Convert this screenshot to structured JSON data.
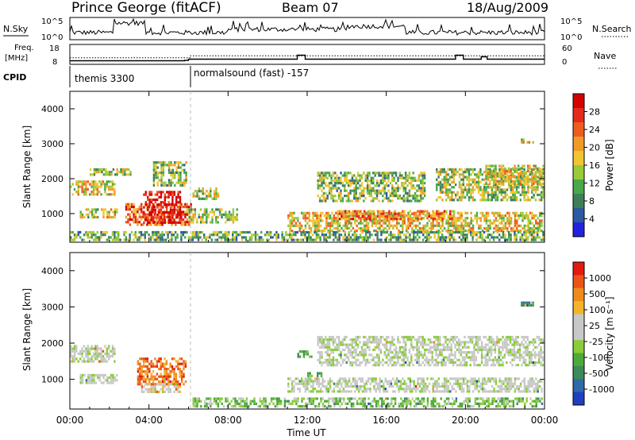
{
  "header": {
    "station": "Prince George (fitACF)",
    "beam": "Beam 07",
    "date": "18/Aug/2009"
  },
  "top_panels": {
    "nsky_label": "N.Sky",
    "nsky_ticks": [
      "10^5",
      "10^0"
    ],
    "nsearch_label": "N.Search",
    "nsearch_ticks": [
      "10^5",
      "10^0"
    ],
    "freq_label": "Freq.",
    "freq_unit": "[MHz]",
    "freq_ticks": [
      "18",
      "8"
    ],
    "nave_label": "Nave",
    "nave_ticks": [
      "60",
      "0"
    ],
    "cpid_label": "CPID",
    "cpid_segments": [
      {
        "start_hour": 0,
        "label": "themis 3300"
      },
      {
        "start_hour": 6,
        "label": "normalsound (fast) -157"
      }
    ],
    "freq_series": [
      {
        "hour": 0,
        "value": 9.8
      },
      {
        "hour": 5.8,
        "value": 10.0
      },
      {
        "hour": 6,
        "value": 10.6
      },
      {
        "hour": 11.4,
        "value": 10.6
      },
      {
        "hour": 11.5,
        "value": 12.6
      },
      {
        "hour": 11.8,
        "value": 12.6
      },
      {
        "hour": 11.9,
        "value": 10.6
      },
      {
        "hour": 19.4,
        "value": 10.6
      },
      {
        "hour": 19.5,
        "value": 12.6
      },
      {
        "hour": 19.8,
        "value": 12.6
      },
      {
        "hour": 19.9,
        "value": 10.6
      },
      {
        "hour": 20.7,
        "value": 10.6
      },
      {
        "hour": 20.8,
        "value": 11.8
      },
      {
        "hour": 21.0,
        "value": 11.8
      },
      {
        "hour": 21.1,
        "value": 10.6
      },
      {
        "hour": 24,
        "value": 10.6
      }
    ],
    "nave_series": [
      {
        "hour": 0,
        "value": 20
      },
      {
        "hour": 6,
        "value": 20
      },
      {
        "hour": 6.1,
        "value": 26
      },
      {
        "hour": 24,
        "value": 26
      }
    ]
  },
  "chart_data": [
    {
      "type": "heatmap",
      "title": "",
      "ylabel": "Slant Range [km]",
      "xlabel": "",
      "x_ticks": [
        "00:00",
        "04:00",
        "08:00",
        "12:00",
        "16:00",
        "20:00",
        "00:00"
      ],
      "x_range_hours": [
        0,
        24
      ],
      "ylim": [
        180,
        4500
      ],
      "y_ticks": [
        1000,
        2000,
        3000,
        4000
      ],
      "colorbar": {
        "label": "Power [dB]",
        "ticks": [
          "28",
          "24",
          "20",
          "16",
          "12",
          "8",
          "4"
        ],
        "colors": [
          "#2222dd",
          "#2c5aa0",
          "#3e7f5a",
          "#48a84a",
          "#9ac93a",
          "#f2c431",
          "#f09a2a",
          "#ee5c22",
          "#e42a1a",
          "#d30000"
        ]
      },
      "echo_regions": [
        {
          "t0": 0.0,
          "t1": 2.4,
          "r0": 1450,
          "r1": 1950,
          "level": 0.55
        },
        {
          "t0": 0.5,
          "t1": 2.5,
          "r0": 800,
          "r1": 1150,
          "level": 0.5
        },
        {
          "t0": 1.0,
          "t1": 3.2,
          "r0": 2050,
          "r1": 2300,
          "level": 0.45
        },
        {
          "t0": 2.8,
          "t1": 6.2,
          "r0": 600,
          "r1": 1300,
          "level": 0.75
        },
        {
          "t0": 3.7,
          "t1": 5.7,
          "r0": 650,
          "r1": 1650,
          "level": 0.95
        },
        {
          "t0": 4.2,
          "t1": 6.0,
          "r0": 1700,
          "r1": 2500,
          "level": 0.4
        },
        {
          "t0": 6.2,
          "t1": 7.6,
          "r0": 1350,
          "r1": 1750,
          "level": 0.45
        },
        {
          "t0": 6.0,
          "t1": 8.6,
          "r0": 700,
          "r1": 1150,
          "level": 0.4
        },
        {
          "t0": 11.0,
          "t1": 24.0,
          "r0": 400,
          "r1": 1050,
          "level": 0.55
        },
        {
          "t0": 12.5,
          "t1": 18.0,
          "r0": 1300,
          "r1": 2200,
          "level": 0.4
        },
        {
          "t0": 13.5,
          "t1": 19.5,
          "r0": 800,
          "r1": 1100,
          "level": 0.7
        },
        {
          "t0": 18.5,
          "t1": 24.0,
          "r0": 1300,
          "r1": 2300,
          "level": 0.45
        },
        {
          "t0": 21.0,
          "t1": 24.0,
          "r0": 1800,
          "r1": 2400,
          "level": 0.55
        },
        {
          "t0": 0.0,
          "t1": 24.0,
          "r0": 180,
          "r1": 500,
          "level": 0.35
        },
        {
          "t0": 22.8,
          "t1": 23.5,
          "r0": 2950,
          "r1": 3150,
          "level": 0.6
        }
      ]
    },
    {
      "type": "heatmap",
      "title": "",
      "ylabel": "Slant Range [km]",
      "xlabel": "Time UT",
      "x_ticks": [
        "00:00",
        "04:00",
        "08:00",
        "12:00",
        "16:00",
        "20:00",
        "00:00"
      ],
      "x_range_hours": [
        0,
        24
      ],
      "ylim": [
        180,
        4500
      ],
      "y_ticks": [
        1000,
        2000,
        3000,
        4000
      ],
      "colorbar": {
        "label": "Velocity [m s⁻¹]",
        "ticks": [
          "1000",
          "500",
          "100",
          "25",
          "-25",
          "-100",
          "-500",
          "-1000"
        ],
        "colors": [
          "#2040c0",
          "#2f6aa6",
          "#3d8a5d",
          "#4caa3a",
          "#8acc3a",
          "#c8c8c8",
          "#c8c8c8",
          "#f4b52a",
          "#f08a1f",
          "#ec5318",
          "#e21a12"
        ]
      },
      "echo_regions": [
        {
          "t0": 0.0,
          "t1": 2.4,
          "r0": 1450,
          "r1": 1950,
          "level": 0.5
        },
        {
          "t0": 0.5,
          "t1": 2.5,
          "r0": 800,
          "r1": 1150,
          "level": 0.5
        },
        {
          "t0": 3.4,
          "t1": 6.0,
          "r0": 800,
          "r1": 1600,
          "level": 0.82
        },
        {
          "t0": 3.6,
          "t1": 5.7,
          "r0": 600,
          "r1": 900,
          "level": 0.55
        },
        {
          "t0": 6.2,
          "t1": 24.0,
          "r0": 180,
          "r1": 500,
          "level": 0.38
        },
        {
          "t0": 11.0,
          "t1": 24.0,
          "r0": 600,
          "r1": 1050,
          "level": 0.5
        },
        {
          "t0": 12.5,
          "t1": 24.0,
          "r0": 1300,
          "r1": 2200,
          "level": 0.5
        },
        {
          "t0": 11.5,
          "t1": 12.3,
          "r0": 1550,
          "r1": 1800,
          "level": 0.35
        },
        {
          "t0": 12.0,
          "t1": 12.8,
          "r0": 1000,
          "r1": 1200,
          "level": 0.32
        },
        {
          "t0": 22.8,
          "t1": 23.5,
          "r0": 2950,
          "r1": 3150,
          "level": 0.2
        }
      ]
    }
  ]
}
